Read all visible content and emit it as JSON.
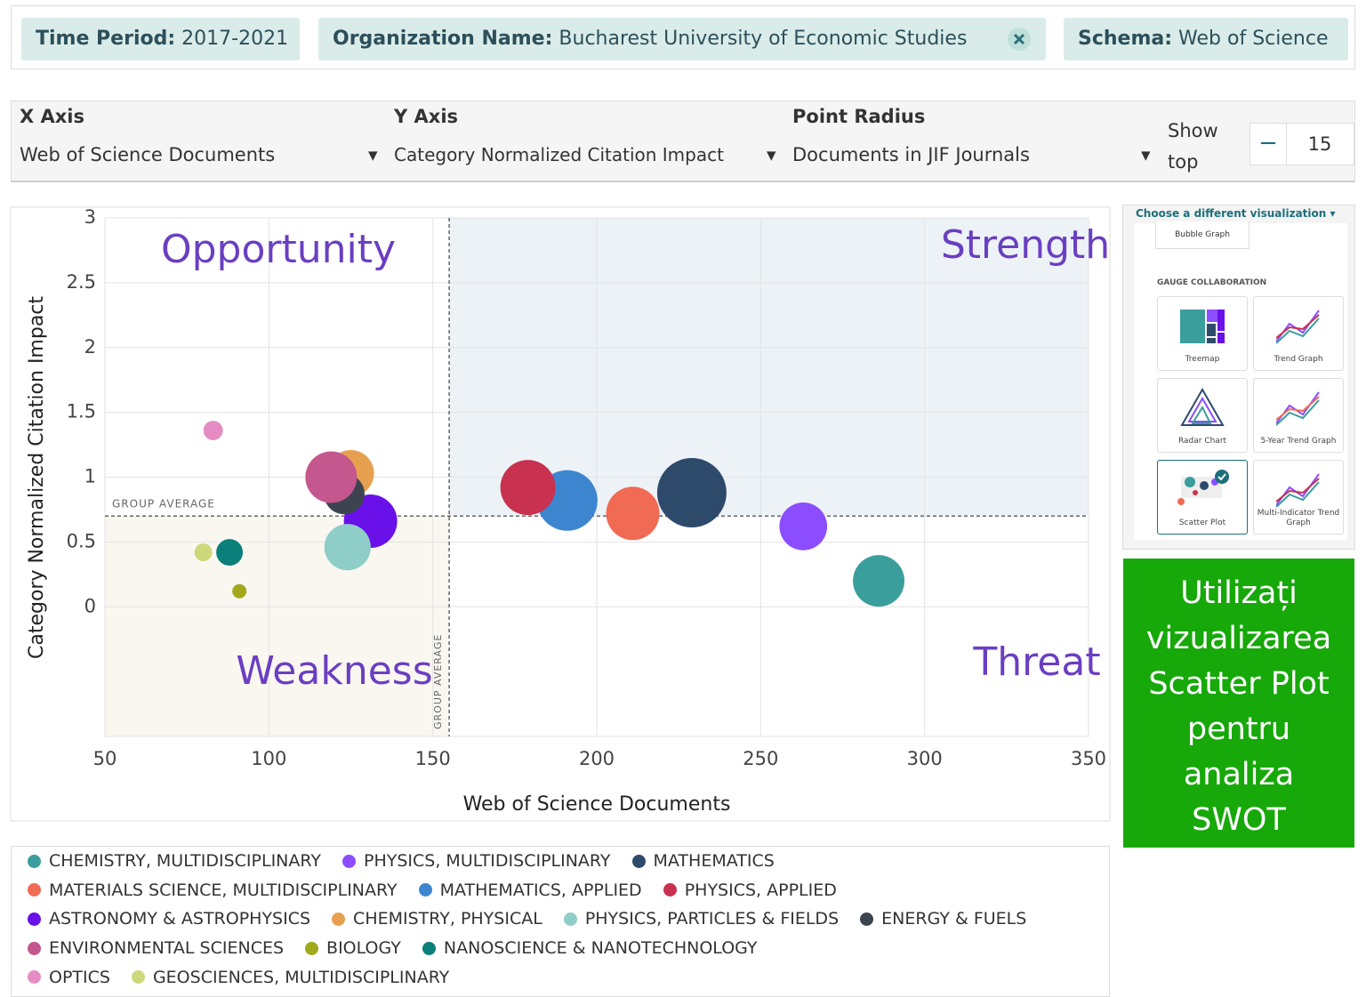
{
  "filters": [
    {
      "label": "Time Period:",
      "value": "2017-2021"
    },
    {
      "label": "Organization Name:",
      "value": "Bucharest University of Economic Studies"
    },
    {
      "label": "Schema:",
      "value": "Web of Science"
    }
  ],
  "controls": {
    "x_axis": {
      "label": "X Axis",
      "value": "Web of Science Documents"
    },
    "y_axis": {
      "label": "Y Axis",
      "value": "Category Normalized Citation Impact"
    },
    "point_radius": {
      "label": "Point Radius",
      "value": "Documents in JIF Journals"
    },
    "show_top": {
      "label": "Show top",
      "value": 15
    }
  },
  "chart_data": {
    "type": "scatter",
    "xlabel": "Web of Science Documents",
    "ylabel": "Category Normalized Citation Impact",
    "xlim": [
      50,
      350
    ],
    "xticks": [
      50,
      100,
      150,
      200,
      250,
      300,
      350
    ],
    "ylim": [
      -1,
      3
    ],
    "yticks": [
      0,
      0.5,
      1,
      1.5,
      2,
      2.5,
      3
    ],
    "grid": true,
    "group_average": {
      "x": 155,
      "y": 0.7,
      "label": "GROUP AVERAGE"
    },
    "annotations": [
      "Opportunity",
      "Strength",
      "Weakness",
      "Threat"
    ],
    "series": [
      {
        "name": "CHEMISTRY, MULTIDISCIPLINARY",
        "color": "#3a9e9c",
        "x": [
          286
        ],
        "values": [
          0.2
        ],
        "sizes": [
          210
        ]
      },
      {
        "name": "PHYSICS, MULTIDISCIPLINARY",
        "color": "#8c4dff",
        "x": [
          263
        ],
        "values": [
          0.62
        ],
        "sizes": [
          180
        ]
      },
      {
        "name": "MATHEMATICS",
        "color": "#2e4a6b",
        "x": [
          229
        ],
        "values": [
          0.88
        ],
        "sizes": [
          380
        ]
      },
      {
        "name": "MATERIALS SCIENCE, MULTIDISCIPLINARY",
        "color": "#f06a54",
        "x": [
          211
        ],
        "values": [
          0.72
        ],
        "sizes": [
          225
        ]
      },
      {
        "name": "MATHEMATICS, APPLIED",
        "color": "#3e85d0",
        "x": [
          191
        ],
        "values": [
          0.82
        ],
        "sizes": [
          290
        ]
      },
      {
        "name": "PHYSICS, APPLIED",
        "color": "#c8314f",
        "x": [
          179
        ],
        "values": [
          0.92
        ],
        "sizes": [
          240
        ]
      },
      {
        "name": "ASTRONOMY & ASTROPHYSICS",
        "color": "#6a10e8",
        "x": [
          131
        ],
        "values": [
          0.66
        ],
        "sizes": [
          225
        ]
      },
      {
        "name": "CHEMISTRY, PHYSICAL",
        "color": "#e6a050",
        "x": [
          125
        ],
        "values": [
          1.03
        ],
        "sizes": [
          170
        ]
      },
      {
        "name": "PHYSICS, PARTICLES & FIELDS",
        "color": "#8ecdc8",
        "x": [
          124
        ],
        "values": [
          0.46
        ],
        "sizes": [
          170
        ]
      },
      {
        "name": "ENERGY & FUELS",
        "color": "#3d4450",
        "x": [
          123
        ],
        "values": [
          0.87
        ],
        "sizes": [
          130
        ]
      },
      {
        "name": "ENVIRONMENTAL SCIENCES",
        "color": "#c4578e",
        "x": [
          119
        ],
        "values": [
          1.0
        ],
        "sizes": [
          210
        ]
      },
      {
        "name": "BIOLOGY",
        "color": "#a0aa1a",
        "x": [
          91
        ],
        "values": [
          0.12
        ],
        "sizes": [
          16
        ]
      },
      {
        "name": "NANOSCIENCE & NANOTECHNOLOGY",
        "color": "#0b7f7a",
        "x": [
          88
        ],
        "values": [
          0.42
        ],
        "sizes": [
          56
        ]
      },
      {
        "name": "OPTICS",
        "color": "#e68cc4",
        "x": [
          83
        ],
        "values": [
          1.36
        ],
        "sizes": [
          30
        ]
      },
      {
        "name": "GEOSCIENCES, MULTIDISCIPLINARY",
        "color": "#ccd87a",
        "x": [
          80
        ],
        "values": [
          0.42
        ],
        "sizes": [
          25
        ]
      }
    ]
  },
  "sidebar": {
    "title": "Choose a different visualization",
    "current": "Bubble Graph",
    "section": "GAUGE COLLABORATION",
    "options": [
      "Treemap",
      "Trend Graph",
      "Radar Chart",
      "5-Year Trend Graph",
      "Scatter Plot",
      "Multi-Indicator Trend Graph"
    ]
  },
  "callout": "Utilizați vizualizarea Scatter Plot pentru analiza SWOT"
}
